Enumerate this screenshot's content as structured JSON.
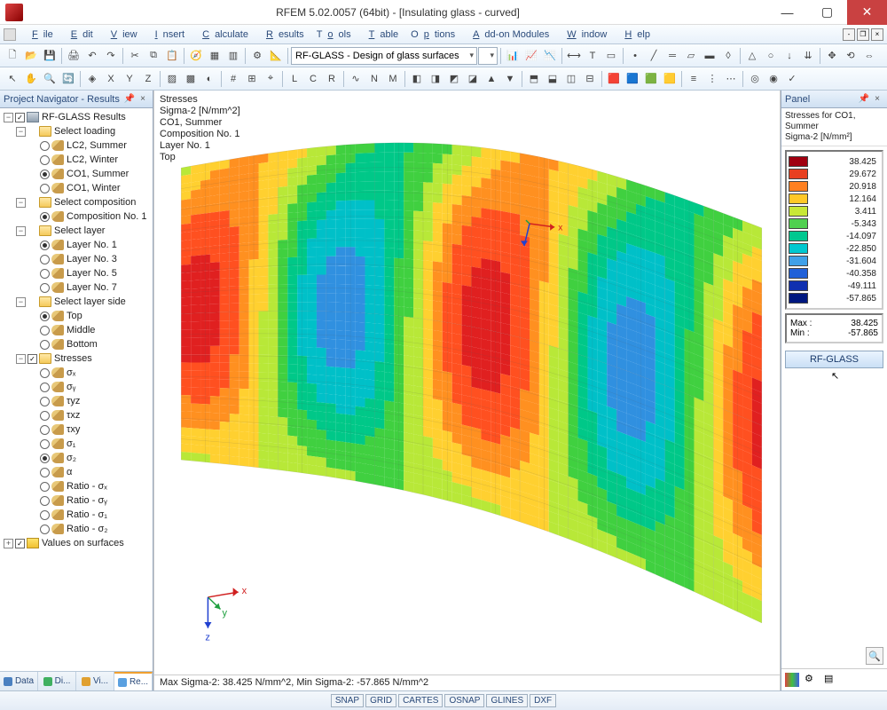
{
  "window": {
    "title": "RFEM 5.02.0057 (64bit) - [Insulating glass - curved]",
    "buttons": {
      "min": "—",
      "max": "▢",
      "close": "✕"
    }
  },
  "menubar": {
    "items": [
      "File",
      "Edit",
      "View",
      "Insert",
      "Calculate",
      "Results",
      "Tools",
      "Table",
      "Options",
      "Add-on Modules",
      "Window",
      "Help"
    ]
  },
  "toolbar1": {
    "combo": "RF-GLASS - Design of glass surfaces"
  },
  "navigator": {
    "header": "Project Navigator - Results",
    "root": "RF-GLASS Results",
    "groups": [
      {
        "label": "Select loading",
        "checked": true,
        "items": [
          {
            "label": "LC2, Summer",
            "sel": false
          },
          {
            "label": "LC2, Winter",
            "sel": false
          },
          {
            "label": "CO1, Summer",
            "sel": true
          },
          {
            "label": "CO1, Winter",
            "sel": false
          }
        ]
      },
      {
        "label": "Select composition",
        "checked": true,
        "items": [
          {
            "label": "Composition No. 1",
            "sel": true
          }
        ]
      },
      {
        "label": "Select layer",
        "checked": true,
        "items": [
          {
            "label": "Layer No. 1",
            "sel": true
          },
          {
            "label": "Layer No. 3",
            "sel": false
          },
          {
            "label": "Layer No. 5",
            "sel": false
          },
          {
            "label": "Layer No. 7",
            "sel": false
          }
        ]
      },
      {
        "label": "Select layer side",
        "checked": true,
        "items": [
          {
            "label": "Top",
            "sel": true
          },
          {
            "label": "Middle",
            "sel": false
          },
          {
            "label": "Bottom",
            "sel": false
          }
        ]
      },
      {
        "label": "Stresses",
        "chk": true,
        "checked": true,
        "items": [
          {
            "label": "σₓ",
            "sel": false
          },
          {
            "label": "σᵧ",
            "sel": false
          },
          {
            "label": "τyz",
            "sel": false
          },
          {
            "label": "τxz",
            "sel": false
          },
          {
            "label": "τxy",
            "sel": false
          },
          {
            "label": "σ₁",
            "sel": false
          },
          {
            "label": "σ₂",
            "sel": true
          },
          {
            "label": "α",
            "sel": false
          },
          {
            "label": "Ratio - σₓ",
            "sel": false
          },
          {
            "label": "Ratio - σᵧ",
            "sel": false
          },
          {
            "label": "Ratio - σ₁",
            "sel": false
          },
          {
            "label": "Ratio - σ₂",
            "sel": false
          }
        ]
      }
    ],
    "values_on_surfaces": "Values on surfaces",
    "tabs": [
      {
        "label": "Data",
        "color": "#4a80c0"
      },
      {
        "label": "Di...",
        "color": "#40b060"
      },
      {
        "label": "Vi...",
        "color": "#e0a030"
      },
      {
        "label": "Re...",
        "color": "#5aa0e0"
      }
    ],
    "active_tab": 3
  },
  "viewport": {
    "info": [
      "Stresses",
      "Sigma-2 [N/mm^2]",
      "CO1, Summer",
      "Composition No. 1",
      "Layer No. 1",
      "Top"
    ],
    "status": "Max Sigma-2: 38.425 N/mm^2, Min Sigma-2: -57.865 N/mm^2",
    "axes": {
      "x": "x",
      "y": "y",
      "z": "z"
    },
    "contour_colors": [
      "#a00010",
      "#e02020",
      "#ff5020",
      "#ff9020",
      "#ffd030",
      "#b8e838",
      "#40d040",
      "#00c888",
      "#00c0c8",
      "#3090e0",
      "#1050c0",
      "#001880"
    ]
  },
  "panel": {
    "header": "Panel",
    "title1": "Stresses for CO1, Summer",
    "title2": "Sigma-2 [N/mm²]",
    "legend": [
      {
        "color": "#a00010",
        "val": "38.425"
      },
      {
        "color": "#e84020",
        "val": "29.672"
      },
      {
        "color": "#ff8020",
        "val": "20.918"
      },
      {
        "color": "#ffc828",
        "val": "12.164"
      },
      {
        "color": "#c8e838",
        "val": "3.411"
      },
      {
        "color": "#50d050",
        "val": "-5.343"
      },
      {
        "color": "#00c890",
        "val": "-14.097"
      },
      {
        "color": "#00c8d0",
        "val": "-22.850"
      },
      {
        "color": "#40a0e8",
        "val": "-31.604"
      },
      {
        "color": "#2060d8",
        "val": "-40.358"
      },
      {
        "color": "#1030b0",
        "val": "-49.111"
      },
      {
        "color": "#001880",
        "val": "-57.865"
      }
    ],
    "max_label": "Max :",
    "max_val": "38.425",
    "min_label": "Min :",
    "min_val": "-57.865",
    "button": "RF-GLASS"
  },
  "statusbar": {
    "buttons": [
      "SNAP",
      "GRID",
      "CARTES",
      "OSNAP",
      "GLINES",
      "DXF"
    ]
  }
}
